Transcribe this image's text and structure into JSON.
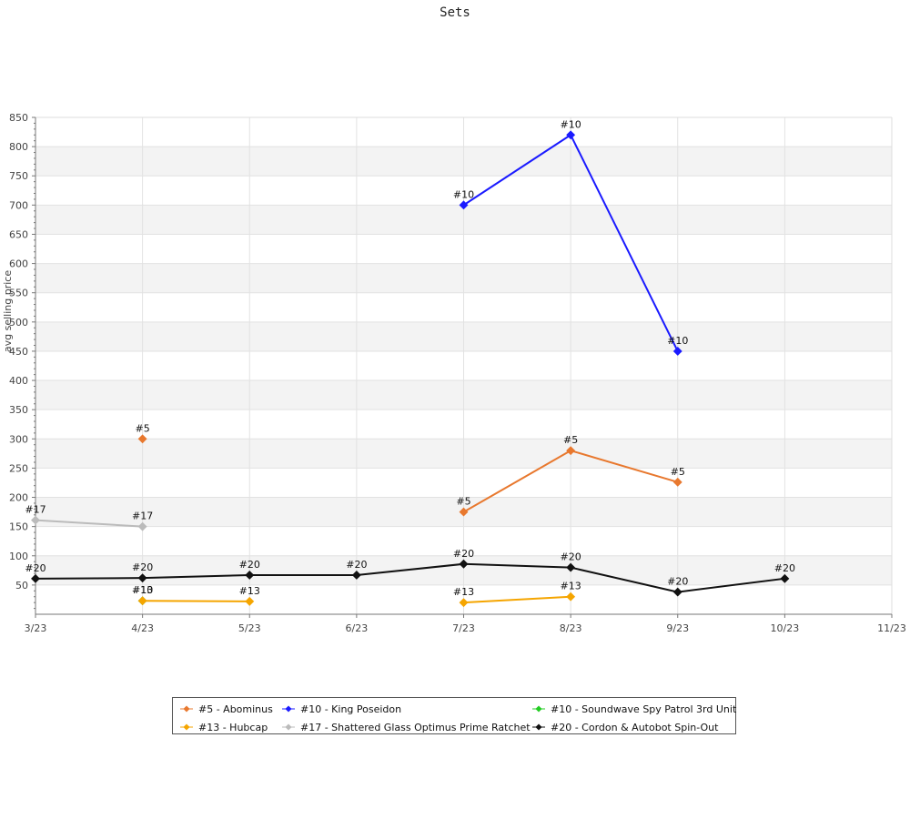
{
  "title": "Sets",
  "chart_data": {
    "type": "line",
    "title": "Sets",
    "xlabel": "",
    "ylabel": "avg selling price",
    "x_ticks": [
      "3/23",
      "4/23",
      "5/23",
      "6/23",
      "7/23",
      "8/23",
      "9/23",
      "10/23",
      "11/23"
    ],
    "y_ticks": [
      "50",
      "100",
      "150",
      "200",
      "250",
      "300",
      "350",
      "400",
      "450",
      "500",
      "550",
      "600",
      "650",
      "700",
      "750",
      "800",
      "850"
    ],
    "ylim": [
      0,
      850
    ],
    "grid": true,
    "legend_position": "bottom",
    "series": [
      {
        "name": "#5 - Abominus",
        "label": "#5",
        "color": "#e8782e",
        "points": [
          {
            "x": "4/23",
            "y": 300
          },
          {
            "x": "7/23",
            "y": 175
          },
          {
            "x": "8/23",
            "y": 280
          },
          {
            "x": "9/23",
            "y": 226
          }
        ],
        "segments": [
          [
            1,
            2
          ],
          [
            2,
            3
          ]
        ]
      },
      {
        "name": "#10 - King Poseidon",
        "label": "#10",
        "color": "#1a1aff",
        "points": [
          {
            "x": "7/23",
            "y": 700
          },
          {
            "x": "8/23",
            "y": 820
          },
          {
            "x": "9/23",
            "y": 450
          }
        ],
        "segments": [
          [
            0,
            1
          ],
          [
            1,
            2
          ]
        ]
      },
      {
        "name": "#10 - Soundwave Spy Patrol 3rd Unit",
        "label": "#10",
        "color": "#22cc22",
        "points": [
          {
            "x": "4/23",
            "y": 23
          }
        ],
        "segments": []
      },
      {
        "name": "#13 - Hubcap",
        "label": "#13",
        "color": "#f5a500",
        "points": [
          {
            "x": "4/23",
            "y": 23
          },
          {
            "x": "5/23",
            "y": 22
          },
          {
            "x": "7/23",
            "y": 20
          },
          {
            "x": "8/23",
            "y": 30
          }
        ],
        "segments": [
          [
            0,
            1
          ],
          [
            2,
            3
          ]
        ]
      },
      {
        "name": "#17 - Shattered Glass Optimus Prime Ratchet",
        "label": "#17",
        "color": "#bbbbbb",
        "points": [
          {
            "x": "3/23",
            "y": 161
          },
          {
            "x": "4/23",
            "y": 150
          }
        ],
        "segments": [
          [
            0,
            1
          ]
        ]
      },
      {
        "name": "#20 - Cordon & Autobot Spin-Out",
        "label": "#20",
        "color": "#111111",
        "points": [
          {
            "x": "3/23",
            "y": 61
          },
          {
            "x": "4/23",
            "y": 62
          },
          {
            "x": "5/23",
            "y": 67
          },
          {
            "x": "6/23",
            "y": 67
          },
          {
            "x": "7/23",
            "y": 86
          },
          {
            "x": "8/23",
            "y": 80
          },
          {
            "x": "9/23",
            "y": 38
          },
          {
            "x": "10/23",
            "y": 61
          }
        ],
        "segments": [
          [
            0,
            1
          ],
          [
            1,
            2
          ],
          [
            2,
            3
          ],
          [
            3,
            4
          ],
          [
            4,
            5
          ],
          [
            5,
            6
          ],
          [
            6,
            7
          ]
        ]
      }
    ]
  }
}
